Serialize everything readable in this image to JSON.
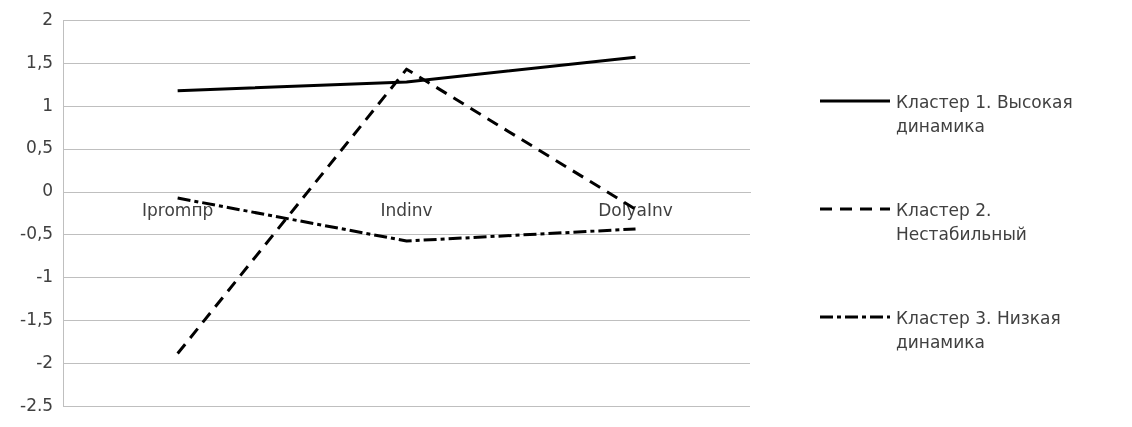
{
  "chart_data": {
    "type": "line",
    "categories": [
      "Ipromпр",
      "Indinv",
      "DolyaInv"
    ],
    "series": [
      {
        "name": "Кластер 1. Высокая динамика",
        "color": "#000000",
        "line_style": "solid",
        "values": [
          1.18,
          1.28,
          1.57
        ]
      },
      {
        "name": "Кластер 2. Нестабильный",
        "color": "#000000",
        "line_style": "dashed",
        "values": [
          -1.88,
          1.43,
          -0.2
        ]
      },
      {
        "name": "Кластер 3. Низкая динамика",
        "color": "#000000",
        "line_style": "dashdot",
        "values": [
          -0.07,
          -0.57,
          -0.43
        ]
      }
    ],
    "ylim": [
      -2.5,
      2
    ],
    "yticks": [
      {
        "value": -2.5,
        "label": "-2.5"
      },
      {
        "value": -2,
        "label": "-2"
      },
      {
        "value": -1.5,
        "label": "-1,5"
      },
      {
        "value": -1,
        "label": "-1"
      },
      {
        "value": -0.5,
        "label": "-0,5"
      },
      {
        "value": 0,
        "label": "0"
      },
      {
        "value": 0.5,
        "label": "0,5"
      },
      {
        "value": 1,
        "label": "1"
      },
      {
        "value": 1.5,
        "label": "1,5"
      },
      {
        "value": 2,
        "label": "2"
      }
    ],
    "grid": "y",
    "legend": "right",
    "marker": "none"
  }
}
